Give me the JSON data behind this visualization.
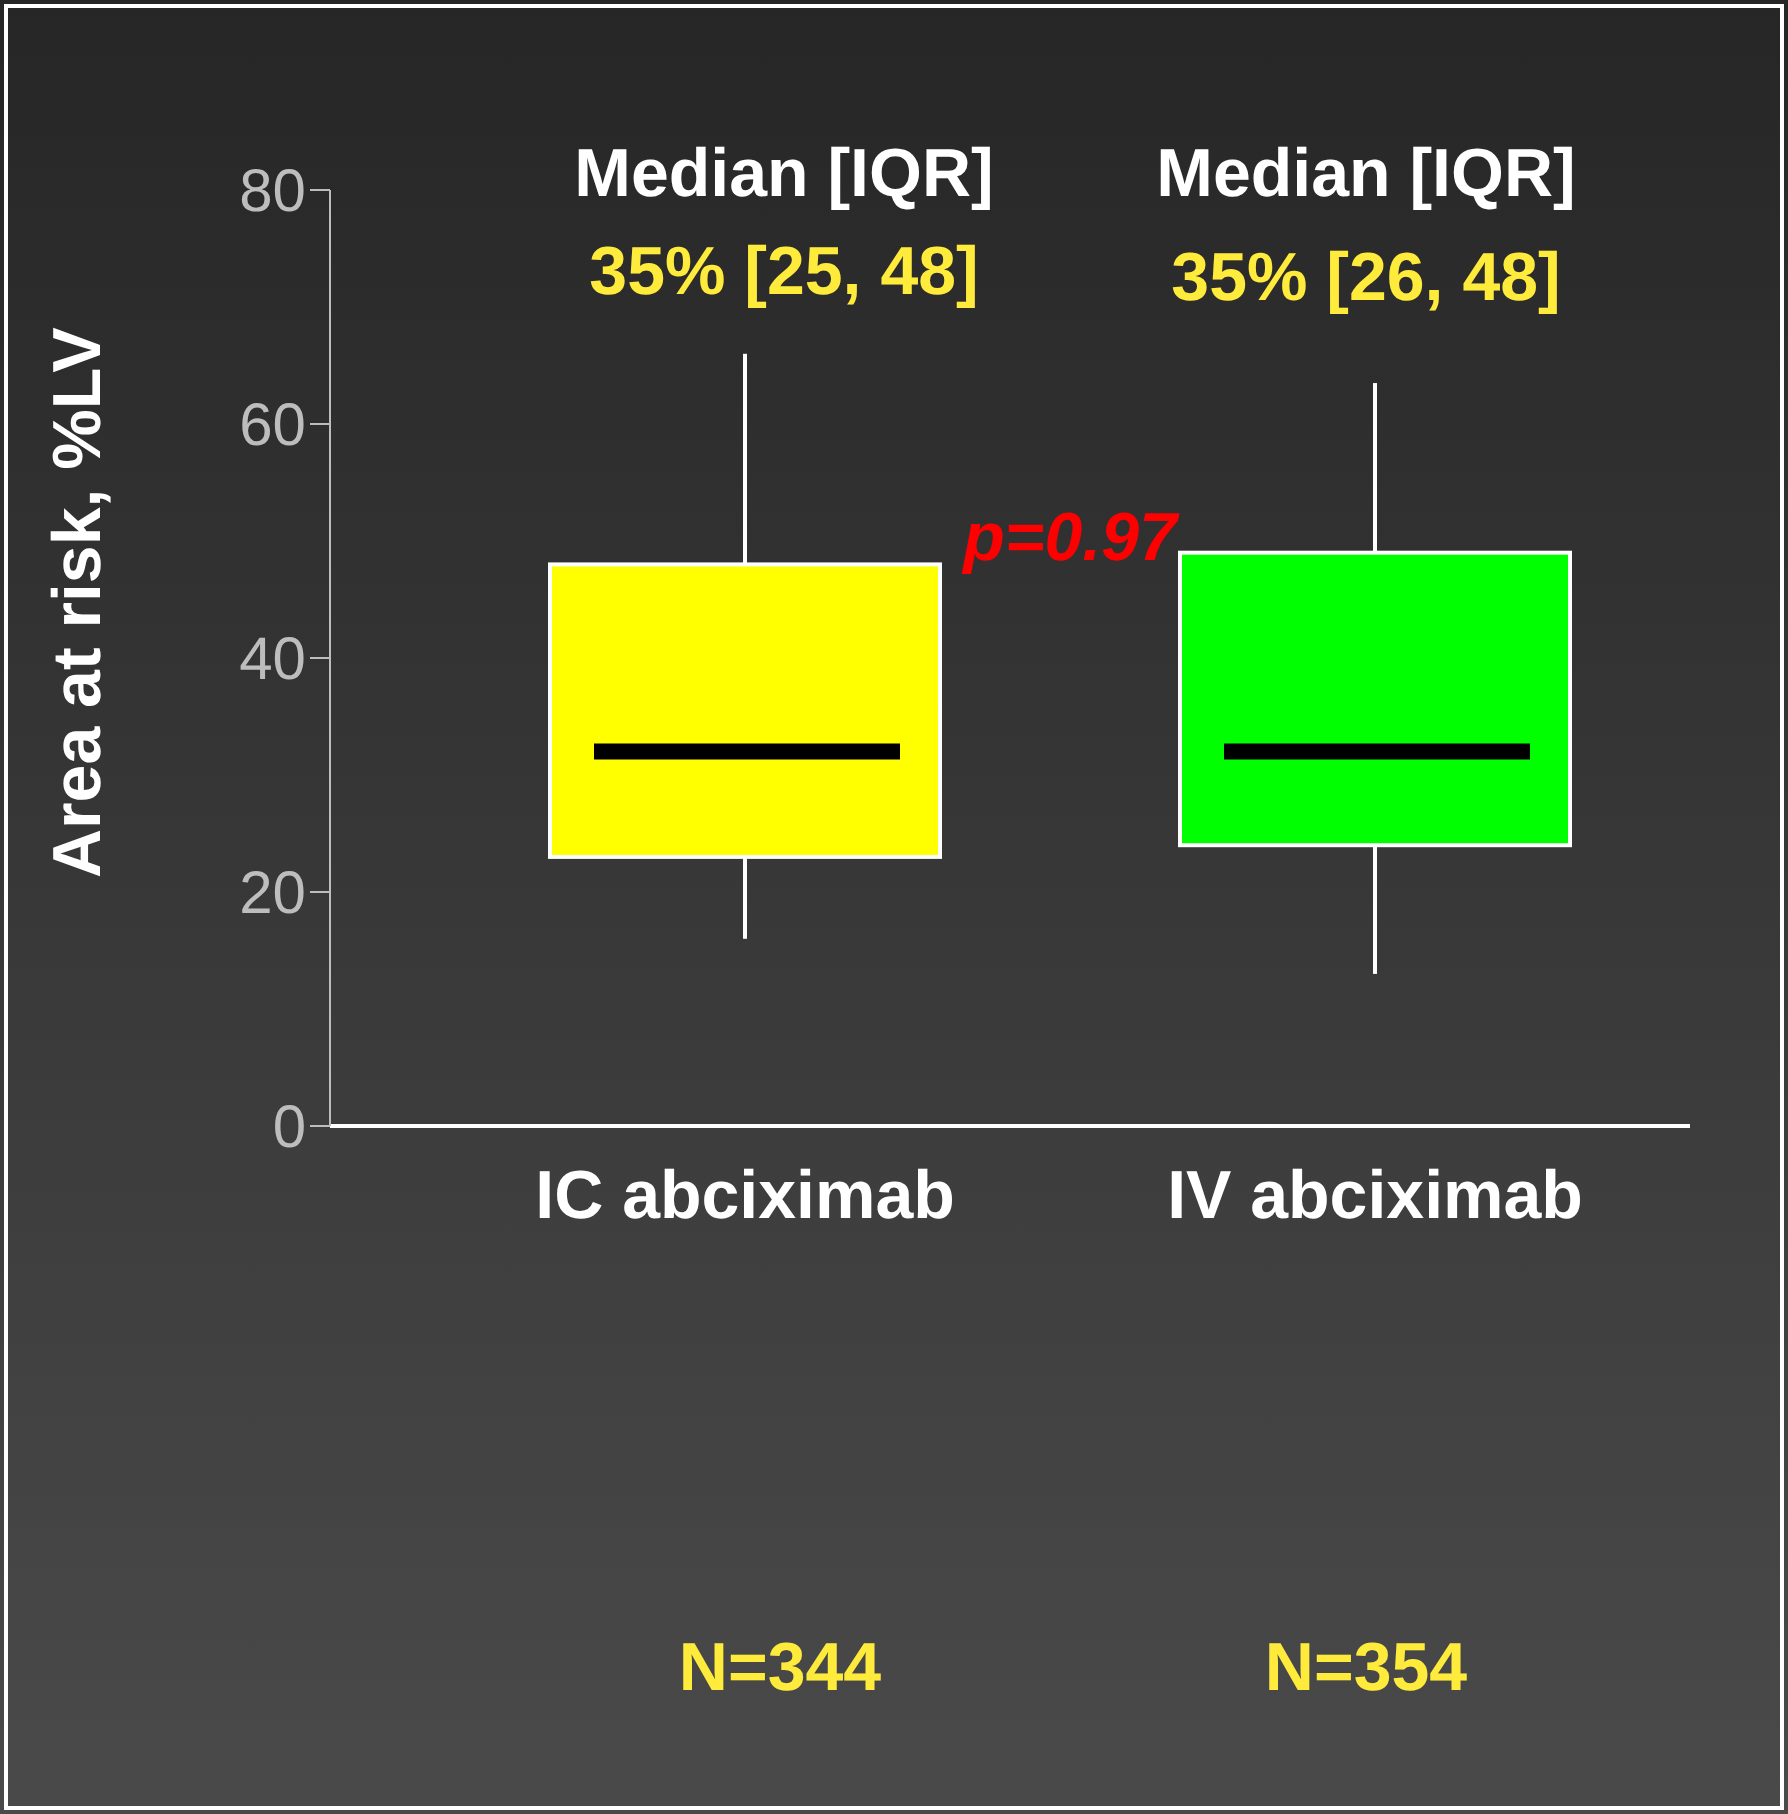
{
  "chart_data": {
    "type": "box",
    "ylabel": "Area at risk, %LV",
    "categories": [
      "IC abciximab",
      "IV abciximab"
    ],
    "colors": [
      "#ffff00",
      "#00ff00"
    ],
    "boxes": [
      {
        "low": 16,
        "q1": 23,
        "median": 32,
        "q3": 48,
        "high": 66
      },
      {
        "low": 13,
        "q1": 24,
        "median": 32,
        "q3": 49,
        "high": 63.5
      }
    ],
    "ylim": [
      0,
      80
    ],
    "yticks": [
      0,
      20,
      40,
      60,
      80
    ],
    "annotations": [
      "Median [IQR]",
      "35% [25, 48]",
      "Median [IQR]",
      "35% [26, 48]",
      "p=0.97",
      "N=344",
      "N=354"
    ]
  }
}
